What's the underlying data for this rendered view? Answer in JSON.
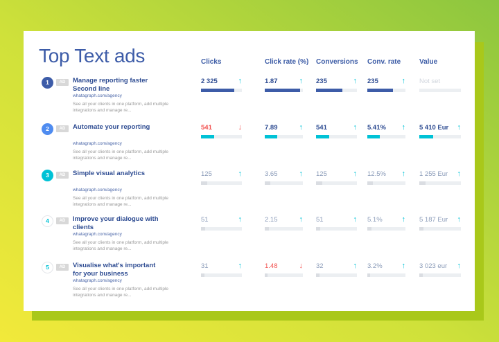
{
  "title": "Top Text ads",
  "columns": [
    "Clicks",
    "Click rate (%)",
    "Conversions",
    "Conv. rate",
    "Value"
  ],
  "badge_label": "AD",
  "colors": {
    "brand_blue": "#3d5ca8",
    "cyan": "#00c2d6",
    "red": "#f2514f",
    "muted_text": "#8a9bb8",
    "placeholder_text": "#d0d5dd",
    "track": "#eceff2"
  },
  "rows": [
    {
      "rank": "1",
      "title": "Manage reporting faster\nSecond line",
      "url": "whatagraph.com/agency",
      "desc": "See all your clients in one platform, add multiple integrations and manage re...",
      "metrics": [
        {
          "value": "2 325",
          "trend": "up",
          "level": 0.82
        },
        {
          "value": "1.87",
          "trend": "up",
          "level": 0.92
        },
        {
          "value": "235",
          "trend": "up",
          "level": 0.65
        },
        {
          "value": "235",
          "trend": "up",
          "level": 0.68
        },
        {
          "value": "Not set",
          "trend": "none",
          "level": 0
        }
      ]
    },
    {
      "rank": "2",
      "title": "Automate your reporting",
      "url": "whatagraph.com/agency",
      "desc": "See all your clients in one platform, add multiple integrations and manage re...",
      "metrics": [
        {
          "value": "541",
          "trend": "down",
          "level": 0.33
        },
        {
          "value": "7.89",
          "trend": "up",
          "level": 0.33
        },
        {
          "value": "541",
          "trend": "up",
          "level": 0.33
        },
        {
          "value": "5.41%",
          "trend": "up",
          "level": 0.33
        },
        {
          "value": "5 410 Eur",
          "trend": "up",
          "level": 0.33
        }
      ]
    },
    {
      "rank": "3",
      "title": "Simple visual analytics",
      "url": "whatagraph.com/agency",
      "desc": "See all your clients in one platform, add multiple integrations and manage re...",
      "metrics": [
        {
          "value": "125",
          "trend": "up",
          "level": 0.15
        },
        {
          "value": "3.65",
          "trend": "up",
          "level": 0.15
        },
        {
          "value": "125",
          "trend": "up",
          "level": 0.15
        },
        {
          "value": "12.5%",
          "trend": "up",
          "level": 0.15
        },
        {
          "value": "1 255 Eur",
          "trend": "up",
          "level": 0.15
        }
      ]
    },
    {
      "rank": "4",
      "title": "Improve your dialogue with\nclients",
      "url": "whatagraph.com/agency",
      "desc": "See all your clients in one platform, add multiple integrations and manage re...",
      "metrics": [
        {
          "value": "51",
          "trend": "up",
          "level": 0.1
        },
        {
          "value": "2.15",
          "trend": "up",
          "level": 0.1
        },
        {
          "value": "51",
          "trend": "up",
          "level": 0.1
        },
        {
          "value": "5.1%",
          "trend": "up",
          "level": 0.1
        },
        {
          "value": "5 187 Eur",
          "trend": "up",
          "level": 0.1
        }
      ]
    },
    {
      "rank": "5",
      "title": "Visualise what's important\nfor your business",
      "url": "whatagraph.com/agency",
      "desc": "See all your clients in one platform, add multiple integrations and manage re...",
      "metrics": [
        {
          "value": "31",
          "trend": "up",
          "level": 0.08
        },
        {
          "value": "1.48",
          "trend": "down",
          "level": 0.08
        },
        {
          "value": "32",
          "trend": "up",
          "level": 0.08
        },
        {
          "value": "3.2%",
          "trend": "up",
          "level": 0.08
        },
        {
          "value": "3 023 eur",
          "trend": "up",
          "level": 0.08
        }
      ]
    }
  ]
}
